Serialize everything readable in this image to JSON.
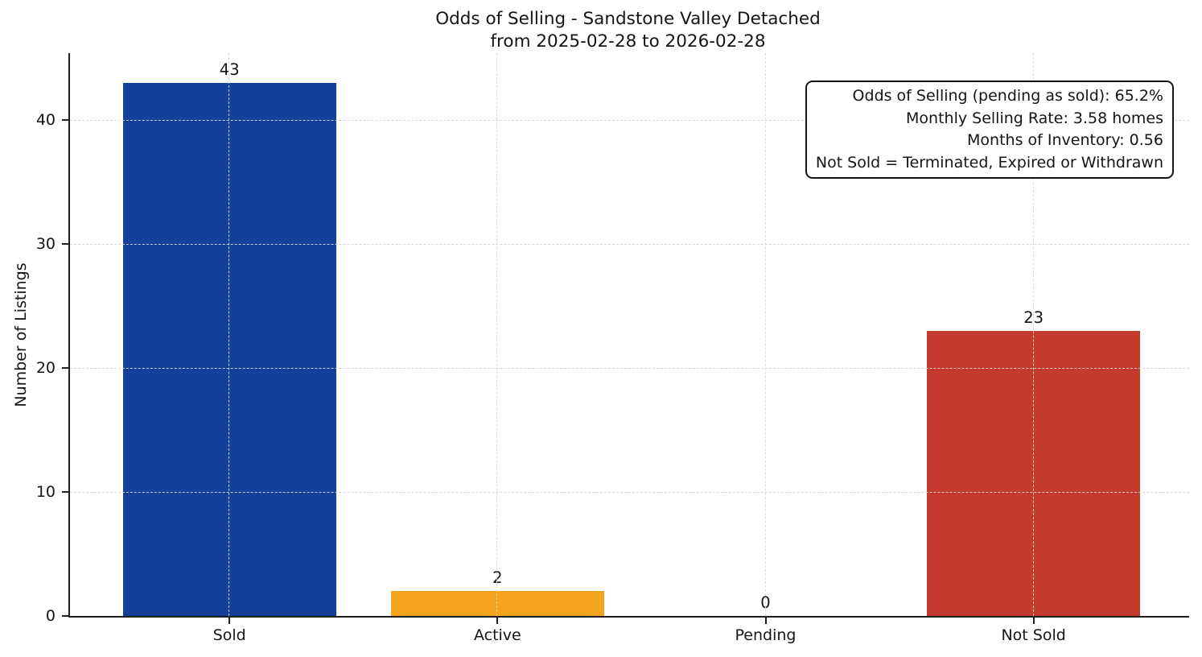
{
  "chart_data": {
    "type": "bar",
    "title": "Odds of Selling - Sandstone Valley Detached",
    "subtitle": "from 2025-02-28 to 2026-02-28",
    "categories": [
      "Sold",
      "Active",
      "Pending",
      "Not Sold"
    ],
    "values": [
      43,
      2,
      0,
      23
    ],
    "value_labels": [
      "43",
      "2",
      "0",
      "23"
    ],
    "bar_colors": [
      "#14409a",
      "#f4a41c",
      null,
      "#c23b2c"
    ],
    "xlabel": "",
    "ylabel": "Number of Listings",
    "yticks": [
      0,
      10,
      20,
      30,
      40
    ],
    "ylim": [
      0,
      45.4
    ],
    "grid": "dashed, both axes, drawn over bars",
    "legend": "none",
    "annotation": {
      "position": "top-right",
      "lines": [
        "Odds of Selling (pending as sold): 65.2%",
        "Monthly Selling Rate: 3.58 homes",
        "Months of Inventory: 0.56",
        "Not Sold = Terminated, Expired or Withdrawn"
      ]
    },
    "text_color": "#151515",
    "background_color": "#ffffff",
    "spine_color": "#1f1f1f"
  }
}
